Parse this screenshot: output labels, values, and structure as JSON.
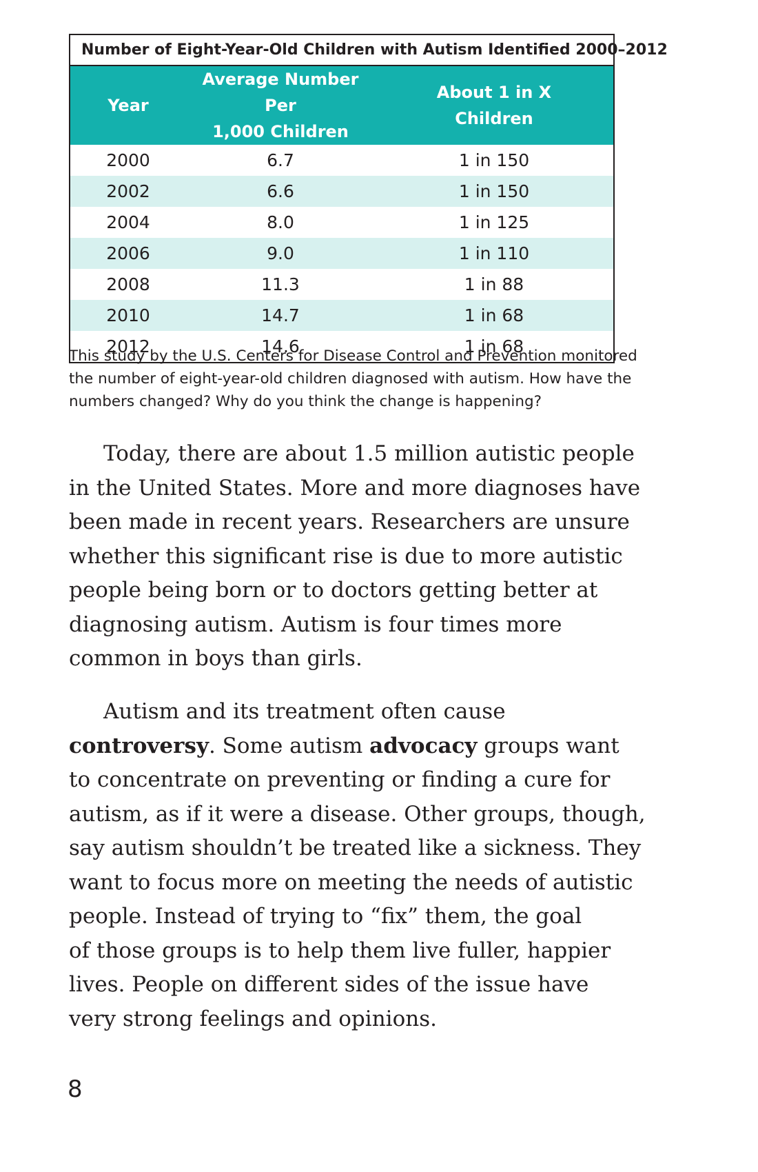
{
  "table": {
    "title": "Number of Eight-Year-Old Children with Autism Identified 2000–2012",
    "headers": {
      "year": "Year",
      "avg_line1": "Average Number Per",
      "avg_line2": "1,000 Children",
      "ratio_line1": "About 1 in X",
      "ratio_line2": "Children"
    },
    "rows": [
      {
        "year": "2000",
        "avg": "6.7",
        "ratio": "1 in 150"
      },
      {
        "year": "2002",
        "avg": "6.6",
        "ratio": "1 in 150"
      },
      {
        "year": "2004",
        "avg": "8.0",
        "ratio": "1 in 125"
      },
      {
        "year": "2006",
        "avg": "9.0",
        "ratio": "1 in 110"
      },
      {
        "year": "2008",
        "avg": "11.3",
        "ratio": "1 in 88"
      },
      {
        "year": "2010",
        "avg": "14.7",
        "ratio": "1 in 68"
      },
      {
        "year": "2012",
        "avg": "14.6",
        "ratio": "1 in 68"
      }
    ],
    "colors": {
      "header_bg": "#14b1ad",
      "stripe_bg": "#d7f1ef"
    }
  },
  "caption": {
    "line1": "This study by the U.S. Centers for Disease Control and Prevention monitored",
    "line2": "the number of eight-year-old children diagnosed with autism. How have the",
    "line3": "numbers changed? Why do you think the change is happening?"
  },
  "paragraph1": {
    "line1": "Today, there are about 1.5 million autistic people",
    "line2": "in the United States. More and more diagnoses have",
    "line3": "been made in recent years. Researchers are unsure",
    "line4": "whether this significant rise is due to more autistic",
    "line5": "people being born or to doctors getting better at",
    "line6": "diagnosing autism. Autism is four times more",
    "line7": "common in boys than girls."
  },
  "paragraph2": {
    "line1": "Autism and its treatment often cause",
    "line2_bold": "controversy",
    "line2_mid": ". Some autism ",
    "line2_bold2": "advocacy",
    "line2_end": " groups want",
    "line3": "to concentrate on preventing or finding a cure for",
    "line4": "autism, as if it were a disease. Other groups, though,",
    "line5": "say autism shouldn’t be treated like a sickness. They",
    "line6": "want to focus more on meeting the needs of autistic",
    "line7": "people. Instead of trying to “fix” them, the goal",
    "line8": "of those groups is to help them live fuller, happier",
    "line9": "lives. People on different sides of the issue have",
    "line10": "very strong feelings and opinions."
  },
  "page_number": "8"
}
